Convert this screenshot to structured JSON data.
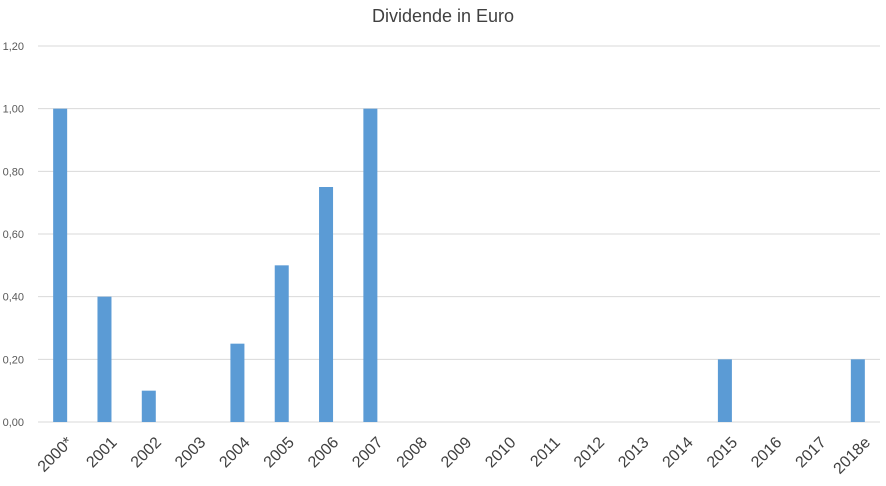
{
  "chart_data": {
    "type": "bar",
    "title": "Dividende in Euro",
    "xlabel": "",
    "ylabel": "",
    "categories": [
      "2000*",
      "2001",
      "2002",
      "2003",
      "2004",
      "2005",
      "2006",
      "2007",
      "2008",
      "2009",
      "2010",
      "2011",
      "2012",
      "2013",
      "2014",
      "2015",
      "2016",
      "2017",
      "2018e"
    ],
    "values": [
      1.0,
      0.4,
      0.1,
      0,
      0.25,
      0.5,
      0.75,
      1.0,
      0,
      0,
      0,
      0,
      0,
      0,
      0,
      0.2,
      0,
      0,
      0.2
    ],
    "ylim": [
      0,
      1.2
    ],
    "yticks": [
      "0,00",
      "0,20",
      "0,40",
      "0,60",
      "0,80",
      "1,00",
      "1,20"
    ],
    "grid": true,
    "legend": "none",
    "bar_color": "#5b9bd5"
  }
}
